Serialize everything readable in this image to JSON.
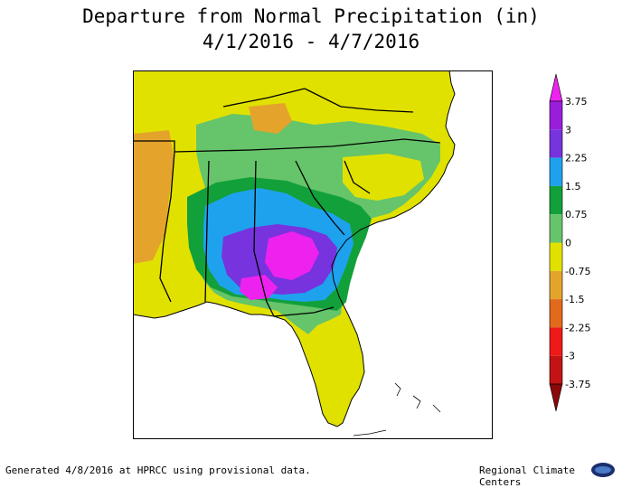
{
  "title_line1": "Departure from Normal Precipitation (in)",
  "title_line2": "4/1/2016 - 4/7/2016",
  "footer_left": "Generated 4/8/2016 at HPRCC using provisional data.",
  "footer_right": "Regional Climate Centers",
  "legend": {
    "labels": [
      "3.75",
      "3",
      "2.25",
      "1.5",
      "0.75",
      "0",
      "-0.75",
      "-1.5",
      "-2.25",
      "-3",
      "-3.75"
    ],
    "bins": [
      {
        "min": 3.75,
        "color": "#ee22ee"
      },
      {
        "min": 3,
        "max": 3.75,
        "color": "#9a1ddc"
      },
      {
        "min": 2.25,
        "max": 3,
        "color": "#7733dd"
      },
      {
        "min": 1.5,
        "max": 2.25,
        "color": "#1ea2ee"
      },
      {
        "min": 0.75,
        "max": 1.5,
        "color": "#12a03a"
      },
      {
        "min": 0,
        "max": 0.75,
        "color": "#66c46a"
      },
      {
        "min": -0.75,
        "max": 0,
        "color": "#e1e100"
      },
      {
        "min": -1.5,
        "max": -0.75,
        "color": "#e4a42c"
      },
      {
        "min": -2.25,
        "max": -1.5,
        "color": "#e26a1c"
      },
      {
        "min": -3,
        "max": -2.25,
        "color": "#ee1a1a"
      },
      {
        "min": -3.75,
        "max": -3,
        "color": "#c21414"
      },
      {
        "max": -3.75,
        "color": "#8a0a0a"
      }
    ]
  }
}
